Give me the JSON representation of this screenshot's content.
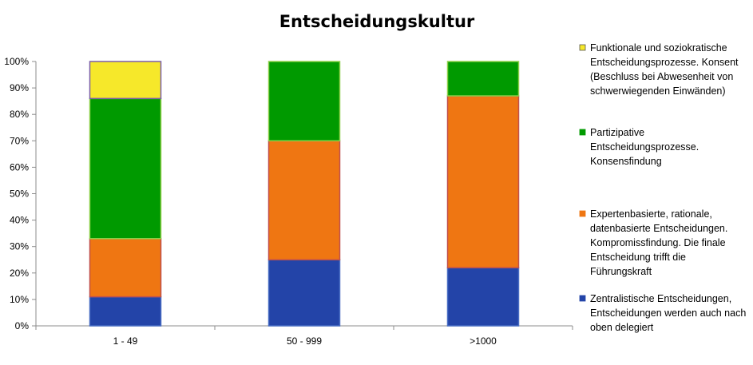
{
  "chart_data": {
    "type": "bar",
    "stacked": true,
    "title": "Entscheidungskultur",
    "xlabel": "",
    "ylabel": "",
    "ylim": [
      0,
      100
    ],
    "y_ticks": [
      "0%",
      "10%",
      "20%",
      "30%",
      "40%",
      "50%",
      "60%",
      "70%",
      "80%",
      "90%",
      "100%"
    ],
    "categories": [
      "1 - 49",
      "50 - 999",
      ">1000"
    ],
    "grid": false,
    "legend_position": "right",
    "series": [
      {
        "name": "Zentralistische Entscheidungen, Entscheidungen werden auch nach oben delegiert",
        "legend_lines": [
          "Zentralistische Entscheidungen,",
          "Entscheidungen werden auch nach",
          "oben delegiert"
        ],
        "color": "#2344a8",
        "border": "#4a6fc4",
        "values": [
          11,
          25,
          22
        ]
      },
      {
        "name": "Expertenbasierte, rationale, datenbasierte Entscheidungen. Kompromissfindung. Die finale Entscheidung trifft die Führungskraft",
        "legend_lines": [
          "Expertenbasierte, rationale,",
          "datenbasierte Entscheidungen.",
          "Kompromissfindung. Die finale",
          "Entscheidung trifft die",
          "Führungskraft"
        ],
        "color": "#ef7612",
        "border": "#c0504d",
        "values": [
          22,
          45,
          65
        ]
      },
      {
        "name": "Partizipative Entscheidungsprozesse. Konsensfindung",
        "legend_lines": [
          "Partizipative",
          "Entscheidungsprozesse.",
          "Konsensfindung"
        ],
        "color": "#009a00",
        "border": "#8ed04a",
        "values": [
          53,
          30,
          13
        ]
      },
      {
        "name": "Funktionale und soziokratische Entscheidungsprozesse. Konsent (Beschluss bei Abwesenheit von schwerwiegenden Einwänden)",
        "legend_lines": [
          "Funktionale und soziokratische",
          "Entscheidungsprozesse. Konsent",
          "(Beschluss bei Abwesenheit von",
          "schwerwiegenden Einwänden)"
        ],
        "color": "#f6e82a",
        "border": "#7b5fa8",
        "values": [
          14,
          0,
          0
        ]
      }
    ]
  }
}
